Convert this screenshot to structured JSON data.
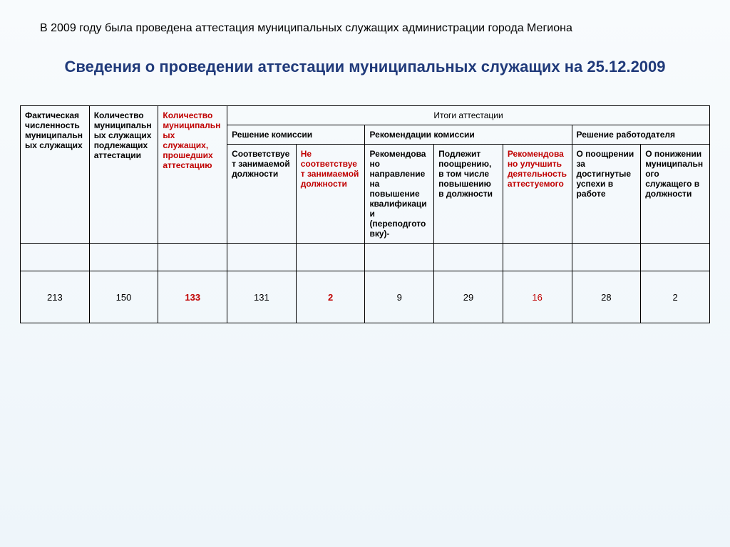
{
  "intro": "В 2009 году была проведена аттестация муниципальных служащих администрации города Мегиона",
  "title": "Сведения о проведении аттестации муниципальных служащих на 25.12.2009",
  "colors": {
    "title": "#203a7a",
    "red": "#c00000",
    "border": "#000000",
    "bg_top": "#f8fbfd",
    "bg_bottom": "#eef5fa"
  },
  "table": {
    "top_header": {
      "c1": "Фактическая численность муниципальных служащих",
      "c2": "Количество муниципальных служащих подлежащих аттестации",
      "c3": "Количество муниципальных служащих, прошедших аттестацию",
      "c4": "Итоги аттестации"
    },
    "mid_header": {
      "g1": "Решение комиссии",
      "g2": "Рекомендации комиссии",
      "g3": "Решение работодателя"
    },
    "sub_header": {
      "s1": "Соответствует занимаемой должности",
      "s2": "Не соответствует занимаемой должности",
      "s3": "Рекомендовано направление на повышение квалификации (переподготовку)-",
      "s4": "Подлежит поощрению, в том числе повышению в должности",
      "s5": "Рекомендовано улучшить деятельность аттестуемого",
      "s6": "О поощрении за достигнутые успехи в работе",
      "s7": "О понижении муниципального служащего в должности"
    },
    "row": {
      "v1": "213",
      "v2": "150",
      "v3": "133",
      "v4": "131",
      "v5": "2",
      "v6": "9",
      "v7": "29",
      "v8": "16",
      "v9": "28",
      "v10": "2"
    }
  }
}
